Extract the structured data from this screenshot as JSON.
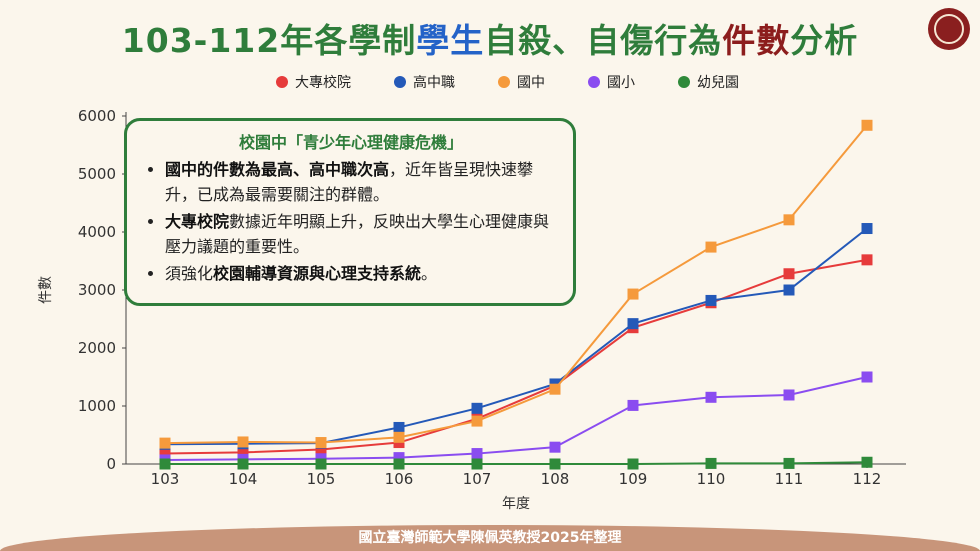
{
  "title": {
    "part1": "103-112年各學制",
    "part2": "學生",
    "part3": "自殺、自傷行為",
    "part4": "件數",
    "part5": "分析"
  },
  "seal": {
    "icon": "university-seal-icon"
  },
  "callout": {
    "heading": "校園中「青少年心理健康危機」",
    "bullet1_bold": "國中的件數為最高、高中職次高",
    "bullet1_rest": "，近年皆呈現快速攀升，已成為最需要關注的群體。",
    "bullet2_bold": "大專校院",
    "bullet2_rest": "數據近年明顯上升，反映出大學生心理健康與壓力議題的重要性。",
    "bullet3_pre": "須強化",
    "bullet3_bold": "校園輔導資源與心理支持系統",
    "bullet3_post": "。"
  },
  "footer": {
    "text": "國立臺灣師範大學陳佩英教授2025年整理"
  },
  "chart_data": {
    "type": "line",
    "title": "103-112年各學制學生自殺、自傷行為件數分析",
    "xlabel": "年度",
    "ylabel": "件數",
    "categories": [
      "103",
      "104",
      "105",
      "106",
      "107",
      "108",
      "109",
      "110",
      "111",
      "112"
    ],
    "ylim": [
      0,
      6000
    ],
    "yticks": [
      0,
      1000,
      2000,
      3000,
      4000,
      5000,
      6000
    ],
    "grid": false,
    "legend": "top",
    "series": [
      {
        "name": "大專校院",
        "color": "#e63b3b",
        "values": [
          180,
          200,
          250,
          370,
          780,
          1350,
          2350,
          2780,
          3280,
          3520
        ]
      },
      {
        "name": "高中職",
        "color": "#2459b8",
        "values": [
          340,
          350,
          360,
          630,
          960,
          1380,
          2420,
          2820,
          3000,
          4060
        ]
      },
      {
        "name": "國中",
        "color": "#f59a3c",
        "values": [
          360,
          380,
          370,
          460,
          740,
          1290,
          2930,
          3740,
          4210,
          5840
        ]
      },
      {
        "name": "國小",
        "color": "#8a4cf0",
        "values": [
          70,
          80,
          90,
          110,
          180,
          290,
          1010,
          1150,
          1190,
          1500
        ]
      },
      {
        "name": "幼兒園",
        "color": "#2f8a3a",
        "values": [
          0,
          0,
          0,
          0,
          0,
          0,
          0,
          10,
          10,
          30
        ]
      }
    ]
  }
}
